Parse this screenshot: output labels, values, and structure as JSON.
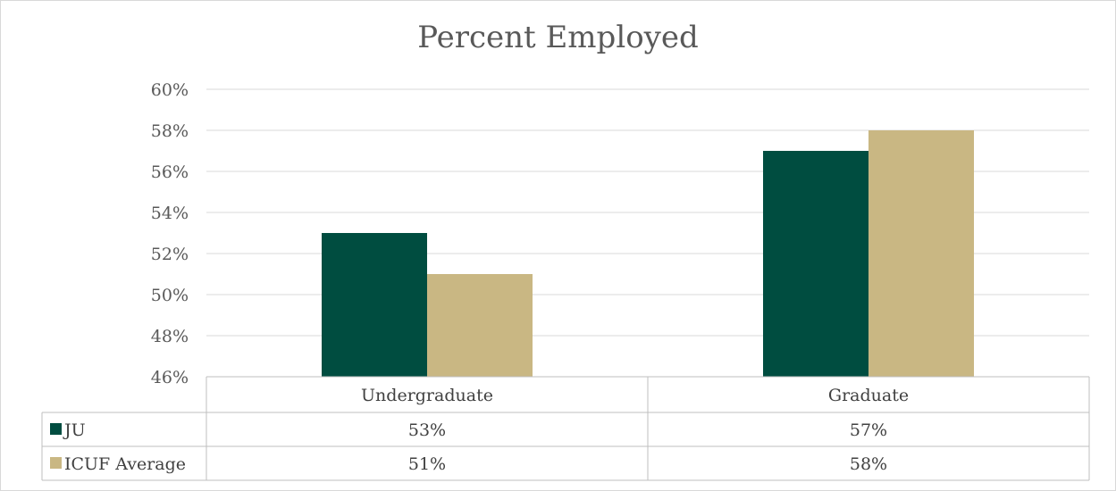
{
  "chart_data": {
    "type": "bar",
    "title": "Percent Employed",
    "categories": [
      "Undergraduate",
      "Graduate"
    ],
    "series": [
      {
        "name": "JU",
        "values": [
          53,
          57
        ],
        "labels": [
          "53%",
          "57%"
        ],
        "color": "#004d40"
      },
      {
        "name": "ICUF Average",
        "values": [
          51,
          58
        ],
        "labels": [
          "51%",
          "58%"
        ],
        "color": "#c9b783"
      }
    ],
    "ylim": [
      46,
      60
    ],
    "yticks": [
      46,
      48,
      50,
      52,
      54,
      56,
      58,
      60
    ],
    "ytick_labels": [
      "46%",
      "48%",
      "50%",
      "52%",
      "54%",
      "56%",
      "58%",
      "60%"
    ],
    "grid": true,
    "legend": "data-table"
  }
}
